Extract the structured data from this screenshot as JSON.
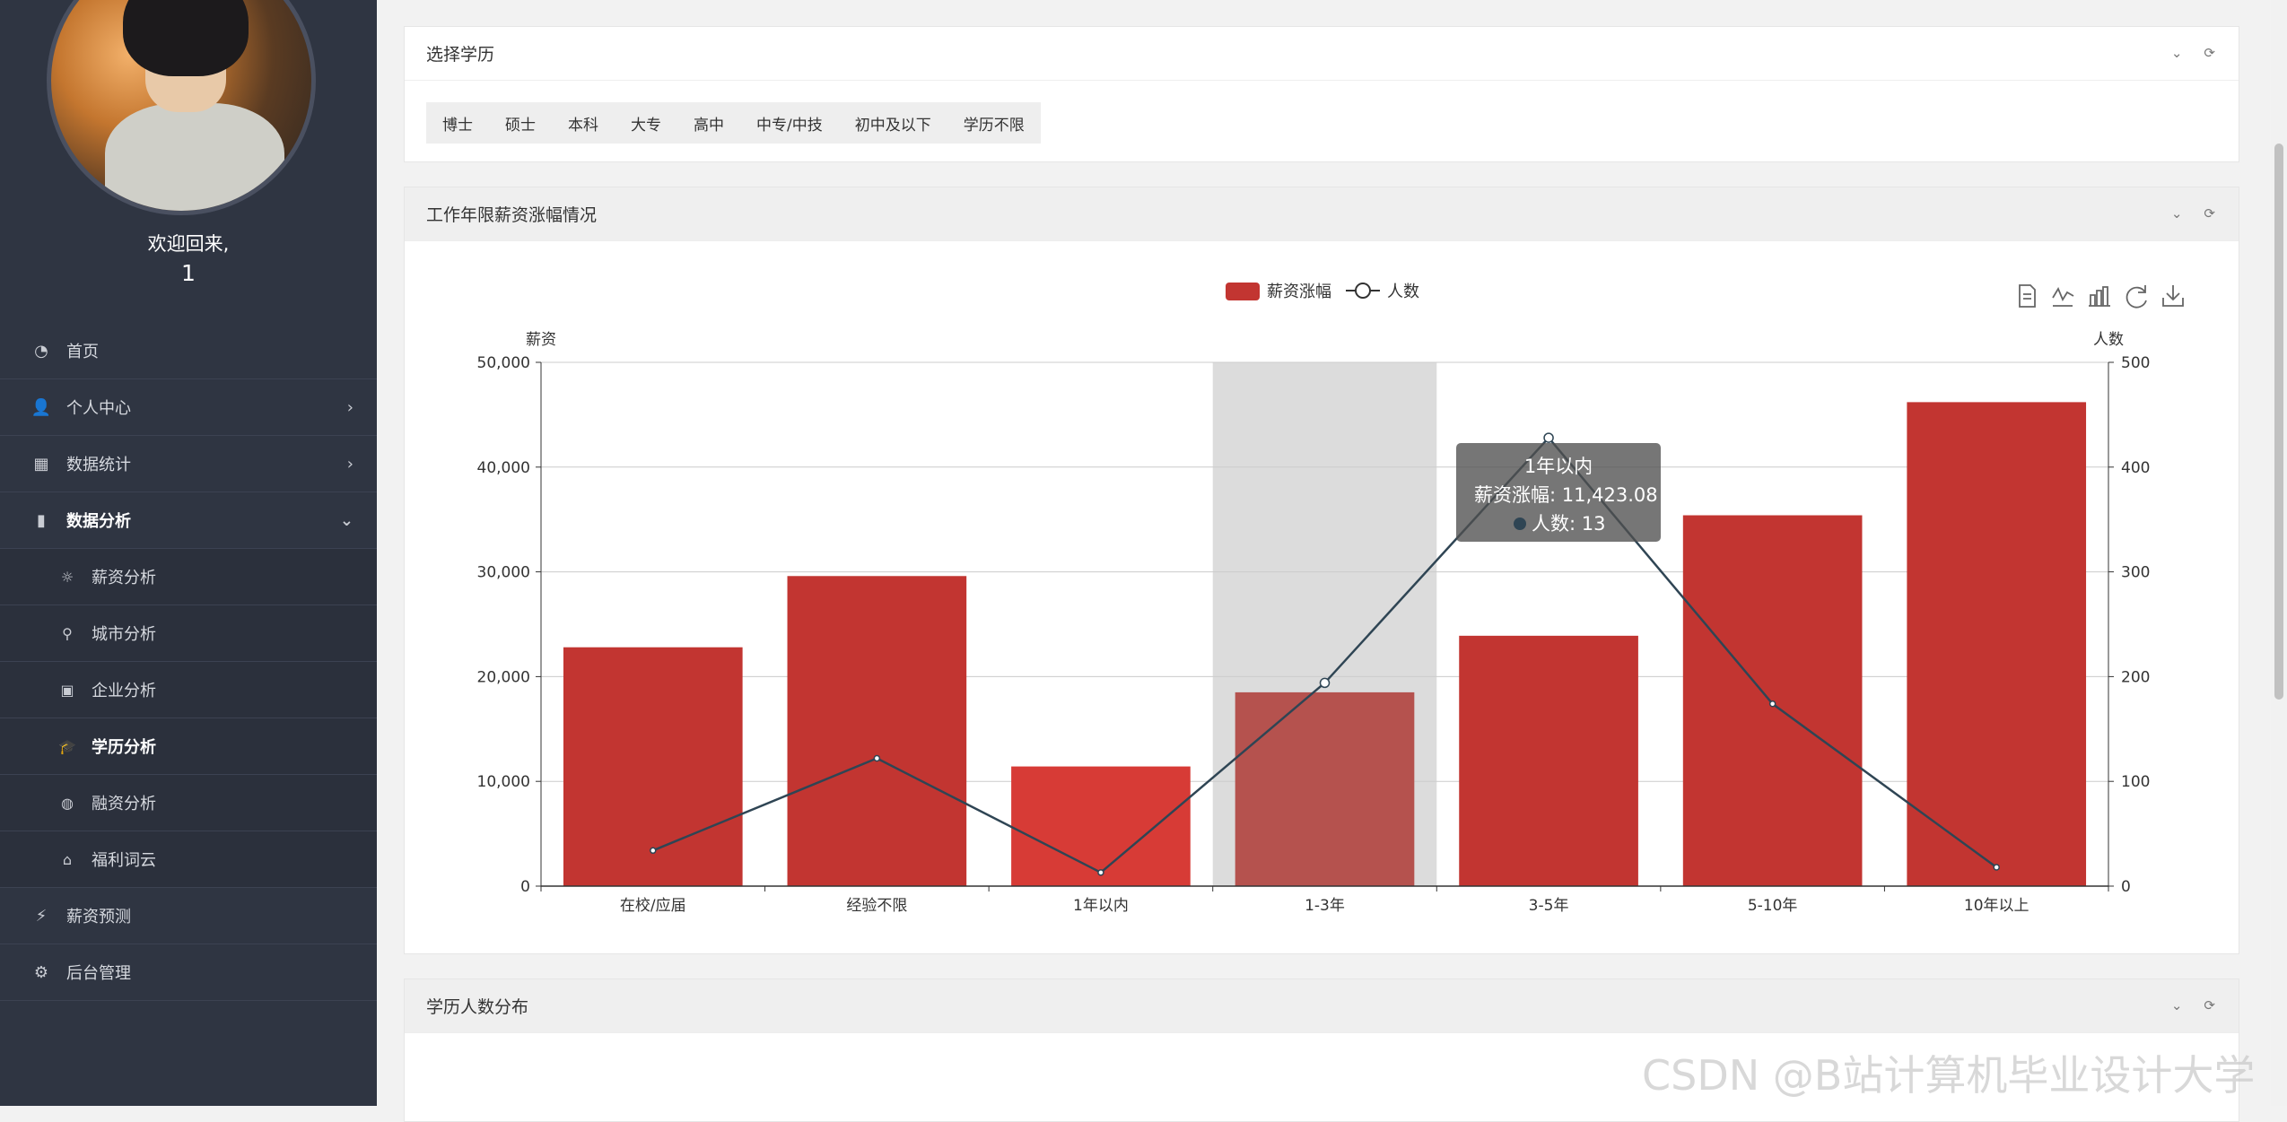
{
  "sidebar": {
    "welcome": "欢迎回来,",
    "username": "1",
    "items": [
      {
        "label": "首页",
        "icon": "dashboard-icon",
        "glyph": "◔",
        "level": 1,
        "arrow": ""
      },
      {
        "label": "个人中心",
        "icon": "user-icon",
        "glyph": "👤",
        "level": 1,
        "arrow": "›"
      },
      {
        "label": "数据统计",
        "icon": "grid-icon",
        "glyph": "▦",
        "level": 1,
        "arrow": "›"
      },
      {
        "label": "数据分析",
        "icon": "bar-chart-icon",
        "glyph": "▮",
        "level": 1,
        "arrow": "⌄",
        "active": true
      },
      {
        "label": "薪资分析",
        "icon": "sun-icon",
        "glyph": "☼",
        "level": 2,
        "arrow": ""
      },
      {
        "label": "城市分析",
        "icon": "map-pin-icon",
        "glyph": "⚲",
        "level": 2,
        "arrow": ""
      },
      {
        "label": "企业分析",
        "icon": "briefcase-icon",
        "glyph": "▣",
        "level": 2,
        "arrow": ""
      },
      {
        "label": "学历分析",
        "icon": "graduation-cap-icon",
        "glyph": "🎓",
        "level": 2,
        "arrow": "",
        "active": true
      },
      {
        "label": "融资分析",
        "icon": "globe-icon",
        "glyph": "◍",
        "level": 2,
        "arrow": ""
      },
      {
        "label": "福利词云",
        "icon": "tag-icon",
        "glyph": "⌂",
        "level": 2,
        "arrow": ""
      },
      {
        "label": "薪资预测",
        "icon": "bolt-icon",
        "glyph": "⚡",
        "level": 1,
        "arrow": ""
      },
      {
        "label": "后台管理",
        "icon": "gear-icon",
        "glyph": "⚙",
        "level": 1,
        "arrow": ""
      }
    ]
  },
  "edu_card": {
    "title": "选择学历",
    "options": [
      "博士",
      "硕士",
      "本科",
      "大专",
      "高中",
      "中专/中技",
      "初中及以下",
      "学历不限"
    ]
  },
  "chart_card": {
    "title": "工作年限薪资涨幅情况"
  },
  "dist_card": {
    "title": "学历人数分布"
  },
  "tooltip": {
    "title": "1年以内",
    "salary_line": "薪资涨幅: 11,423.08",
    "count_line": "人数: 13"
  },
  "watermark": "CSDN @B站计算机毕业设计大学",
  "colors": {
    "bar": "#c23531",
    "bar_hover": "#d73b36",
    "bar_highlight": "#b5524e",
    "line": "#2f4554",
    "sidebar": "#2f3542"
  },
  "chart_data": {
    "type": "bar",
    "categories": [
      "在校/应届",
      "经验不限",
      "1年以内",
      "1-3年",
      "3-5年",
      "5-10年",
      "10年以上"
    ],
    "series": [
      {
        "name": "薪资涨幅",
        "type": "bar",
        "axis": "left",
        "values": [
          22800,
          29600,
          11423.08,
          18500,
          23900,
          35400,
          46200
        ]
      },
      {
        "name": "人数",
        "type": "line",
        "axis": "right",
        "values": [
          34,
          122,
          13,
          194,
          428,
          174,
          18
        ]
      }
    ],
    "ylabel": "薪资",
    "y2label": "人数",
    "ylim": [
      0,
      50000
    ],
    "y2lim": [
      0,
      500
    ],
    "yticks": [
      "0",
      "10,000",
      "20,000",
      "30,000",
      "40,000",
      "50,000"
    ],
    "y2ticks": [
      "0",
      "100",
      "200",
      "300",
      "400",
      "500"
    ],
    "legend": [
      "薪资涨幅",
      "人数"
    ],
    "legend_position": "top-center",
    "grid": true,
    "highlight_category_index": 3,
    "hover_bar_index": 2
  }
}
